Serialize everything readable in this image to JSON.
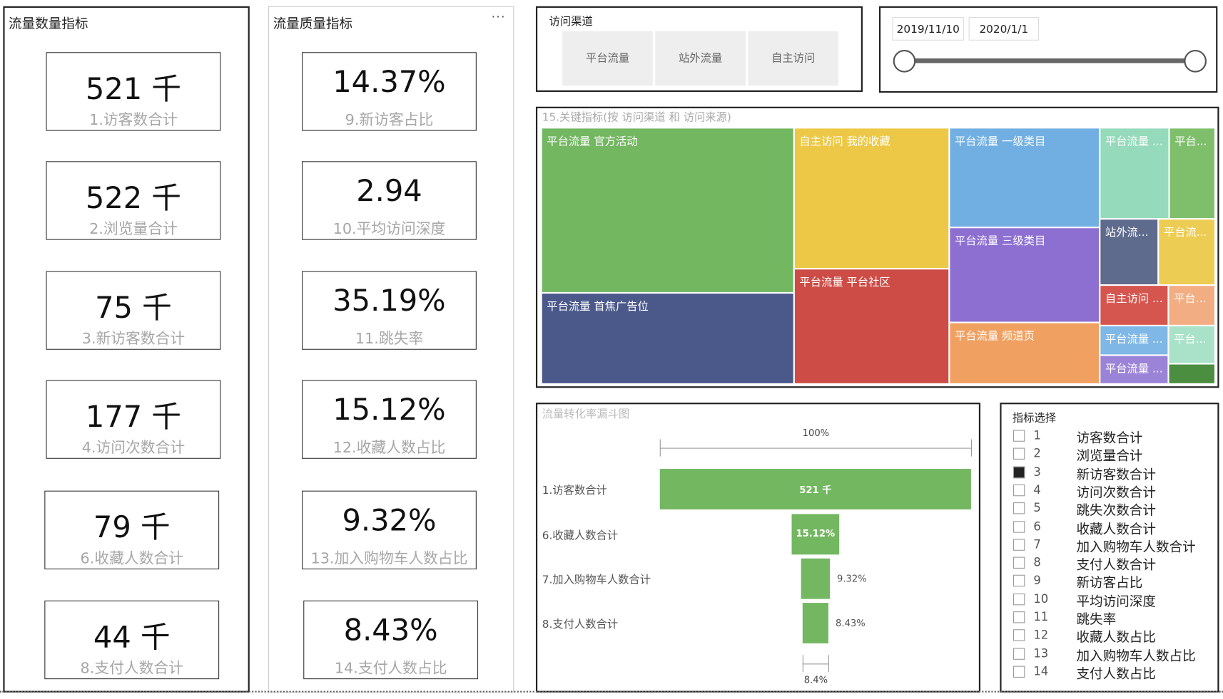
{
  "quantity_panel": {
    "title": "流量数量指标",
    "cards": [
      {
        "value": "521 千",
        "label": "1.访客数合计"
      },
      {
        "value": "522 千",
        "label": "2.浏览量合计"
      },
      {
        "value": "75 千",
        "label": "3.新访客数合计"
      },
      {
        "value": "177 千",
        "label": "4.访问次数合计"
      },
      {
        "value": "79 千",
        "label": "6.收藏人数合计"
      },
      {
        "value": "44 千",
        "label": "8.支付人数合计"
      }
    ]
  },
  "quality_panel": {
    "title": "流量质量指标",
    "cards": [
      {
        "value": "14.37%",
        "label": "9.新访客占比"
      },
      {
        "value": "2.94",
        "label": "10.平均访问深度"
      },
      {
        "value": "35.19%",
        "label": "11.跳失率"
      },
      {
        "value": "15.12%",
        "label": "12.收藏人数占比"
      },
      {
        "value": "9.32%",
        "label": "13.加入购物车人数占比"
      },
      {
        "value": "8.43%",
        "label": "14.支付人数占比"
      }
    ]
  },
  "channel_filter": {
    "title": "访问渠道",
    "options": [
      "平台流量",
      "站外流量",
      "自主访问"
    ]
  },
  "date_range": {
    "start": "2019/11/10",
    "end": "2020/1/1"
  },
  "treemap": {
    "title": "15.关键指标(按 访问渠道 和 访问来源)",
    "tiles": [
      {
        "label": "平台流量 官方活动",
        "color": "#73b761"
      },
      {
        "label": "平台流量 首焦广告位",
        "color": "#4a588a"
      },
      {
        "label": "自主访问 我的收藏",
        "color": "#ecc846"
      },
      {
        "label": "平台流量 平台社区",
        "color": "#cd4c46"
      },
      {
        "label": "平台流量 一级类目",
        "color": "#71afe2"
      },
      {
        "label": "平台流量 三级类目",
        "color": "#8d6fd1"
      },
      {
        "label": "平台流量 频道页",
        "color": "#f0a061"
      },
      {
        "label": "平台流量 ...",
        "color": "#95dabb"
      },
      {
        "label": "平台...",
        "color": "#7fbf6c"
      },
      {
        "label": "站外流...",
        "color": "#5f6b8d"
      },
      {
        "label": "平台流...",
        "color": "#eccc52"
      },
      {
        "label": "自主访问 ...",
        "color": "#d5554f"
      },
      {
        "label": "平台...",
        "color": "#f3ad82"
      },
      {
        "label": "平台流量 ...",
        "color": "#7fb7e6"
      },
      {
        "label": "平台...",
        "color": "#a9e2c9"
      },
      {
        "label": "平台流量 ...",
        "color": "#9b83d8"
      },
      {
        "color": "#4b8e3f"
      }
    ]
  },
  "funnel": {
    "title": "流量转化率漏斗图",
    "top_label": "100%",
    "bottom_label": "8.4%",
    "stages": [
      {
        "name": "1.访客数合计",
        "percent": 100,
        "value_label": "521 千"
      },
      {
        "name": "6.收藏人数合计",
        "percent": 15.12,
        "value_label": "15.12%"
      },
      {
        "name": "7.加入购物车人数合计",
        "percent": 9.32,
        "value_label": "9.32%"
      },
      {
        "name": "8.支付人数合计",
        "percent": 8.43,
        "value_label": "8.43%"
      }
    ],
    "color": "#73b761"
  },
  "metric_selector": {
    "title": "指标选择",
    "items": [
      {
        "number": 1,
        "label": "访客数合计",
        "checked": false
      },
      {
        "number": 2,
        "label": "浏览量合计",
        "checked": false
      },
      {
        "number": 3,
        "label": "新访客数合计",
        "checked": true
      },
      {
        "number": 4,
        "label": "访问次数合计",
        "checked": false
      },
      {
        "number": 5,
        "label": "跳失次数合计",
        "checked": false
      },
      {
        "number": 6,
        "label": "收藏人数合计",
        "checked": false
      },
      {
        "number": 7,
        "label": "加入购物车人数合计",
        "checked": false
      },
      {
        "number": 8,
        "label": "支付人数合计",
        "checked": false
      },
      {
        "number": 9,
        "label": "新访客占比",
        "checked": false
      },
      {
        "number": 10,
        "label": "平均访问深度",
        "checked": false
      },
      {
        "number": 11,
        "label": "跳失率",
        "checked": false
      },
      {
        "number": 12,
        "label": "收藏人数占比",
        "checked": false
      },
      {
        "number": 13,
        "label": "加入购物车人数占比",
        "checked": false
      },
      {
        "number": 14,
        "label": "支付人数占比",
        "checked": false
      }
    ]
  }
}
